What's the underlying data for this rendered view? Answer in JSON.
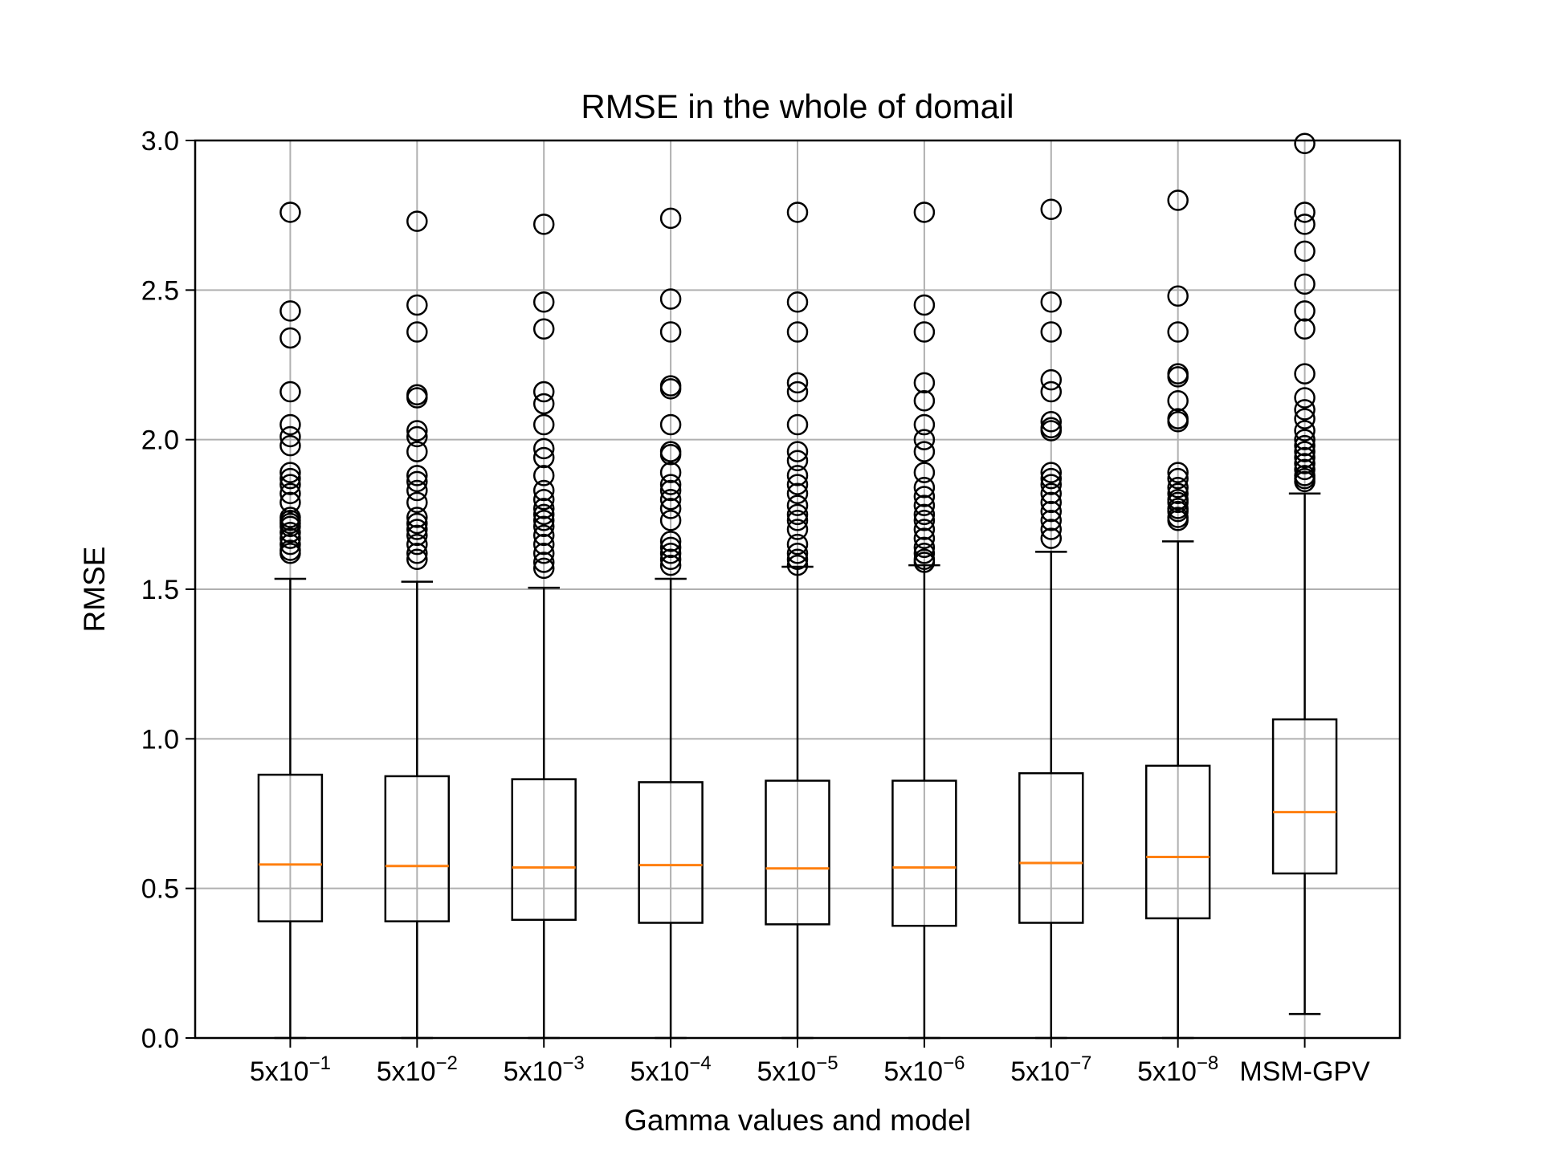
{
  "chart_data": {
    "type": "boxplot",
    "title": "RMSE in the whole of domail",
    "xlabel": "Gamma values and model",
    "ylabel": "RMSE",
    "ylim": [
      0.0,
      3.0
    ],
    "yticks": [
      "0.0",
      "0.5",
      "1.0",
      "1.5",
      "2.0",
      "2.5",
      "3.0"
    ],
    "grid": true,
    "colors": {
      "box": "#000000",
      "median": "#ff7f0e",
      "grid": "#b0b0b0"
    },
    "categories": [
      {
        "base": "5x10",
        "exp": "−1"
      },
      {
        "base": "5x10",
        "exp": "−2"
      },
      {
        "base": "5x10",
        "exp": "−3"
      },
      {
        "base": "5x10",
        "exp": "−4"
      },
      {
        "base": "5x10",
        "exp": "−5"
      },
      {
        "base": "5x10",
        "exp": "−6"
      },
      {
        "base": "5x10",
        "exp": "−7"
      },
      {
        "base": "5x10",
        "exp": "−8"
      },
      {
        "base": "MSM-GPV",
        "exp": ""
      }
    ],
    "boxes": [
      {
        "whislo": 0.0,
        "q1": 0.39,
        "median": 0.58,
        "q3": 0.88,
        "whishi": 1.535,
        "fliers": [
          1.62,
          1.63,
          1.65,
          1.67,
          1.69,
          1.71,
          1.72,
          1.73,
          1.74,
          1.79,
          1.82,
          1.85,
          1.87,
          1.89,
          1.98,
          2.01,
          2.05,
          2.16,
          2.34,
          2.43,
          2.76
        ]
      },
      {
        "whislo": 0.0,
        "q1": 0.39,
        "median": 0.575,
        "q3": 0.875,
        "whishi": 1.525,
        "fliers": [
          1.6,
          1.62,
          1.65,
          1.68,
          1.7,
          1.72,
          1.74,
          1.79,
          1.83,
          1.86,
          1.88,
          1.96,
          2.01,
          2.03,
          2.14,
          2.15,
          2.36,
          2.45,
          2.73
        ]
      },
      {
        "whislo": 0.0,
        "q1": 0.395,
        "median": 0.57,
        "q3": 0.865,
        "whishi": 1.505,
        "fliers": [
          1.57,
          1.59,
          1.62,
          1.65,
          1.68,
          1.71,
          1.73,
          1.75,
          1.77,
          1.8,
          1.83,
          1.88,
          1.94,
          1.97,
          2.05,
          2.12,
          2.16,
          2.37,
          2.46,
          2.72
        ]
      },
      {
        "whislo": 0.0,
        "q1": 0.385,
        "median": 0.578,
        "q3": 0.855,
        "whishi": 1.535,
        "fliers": [
          1.58,
          1.6,
          1.62,
          1.64,
          1.66,
          1.73,
          1.77,
          1.8,
          1.83,
          1.85,
          1.89,
          1.95,
          1.96,
          2.05,
          2.17,
          2.18,
          2.36,
          2.47,
          2.74
        ]
      },
      {
        "whislo": 0.0,
        "q1": 0.38,
        "median": 0.567,
        "q3": 0.86,
        "whishi": 1.575,
        "fliers": [
          1.58,
          1.6,
          1.62,
          1.65,
          1.7,
          1.73,
          1.75,
          1.78,
          1.82,
          1.85,
          1.88,
          1.93,
          1.96,
          2.05,
          2.16,
          2.19,
          2.36,
          2.46,
          2.76
        ]
      },
      {
        "whislo": 0.0,
        "q1": 0.375,
        "median": 0.57,
        "q3": 0.86,
        "whishi": 1.58,
        "fliers": [
          1.59,
          1.6,
          1.62,
          1.64,
          1.67,
          1.7,
          1.73,
          1.75,
          1.78,
          1.81,
          1.84,
          1.89,
          1.96,
          2.0,
          2.05,
          2.13,
          2.19,
          2.36,
          2.45,
          2.76
        ]
      },
      {
        "whislo": 0.0,
        "q1": 0.385,
        "median": 0.585,
        "q3": 0.885,
        "whishi": 1.625,
        "fliers": [
          1.67,
          1.7,
          1.73,
          1.76,
          1.79,
          1.82,
          1.85,
          1.87,
          1.89,
          2.03,
          2.04,
          2.06,
          2.16,
          2.2,
          2.36,
          2.46,
          2.77
        ]
      },
      {
        "whislo": 0.0,
        "q1": 0.4,
        "median": 0.605,
        "q3": 0.91,
        "whishi": 1.66,
        "fliers": [
          1.73,
          1.74,
          1.76,
          1.77,
          1.79,
          1.8,
          1.82,
          1.84,
          1.87,
          1.89,
          2.06,
          2.07,
          2.13,
          2.21,
          2.22,
          2.36,
          2.48,
          2.8
        ]
      },
      {
        "whislo": 0.08,
        "q1": 0.55,
        "median": 0.755,
        "q3": 1.065,
        "whishi": 1.82,
        "fliers": [
          1.86,
          1.87,
          1.88,
          1.9,
          1.92,
          1.94,
          1.96,
          1.98,
          2.0,
          2.03,
          2.07,
          2.1,
          2.14,
          2.22,
          2.37,
          2.43,
          2.52,
          2.63,
          2.72,
          2.76,
          2.99
        ]
      }
    ]
  }
}
